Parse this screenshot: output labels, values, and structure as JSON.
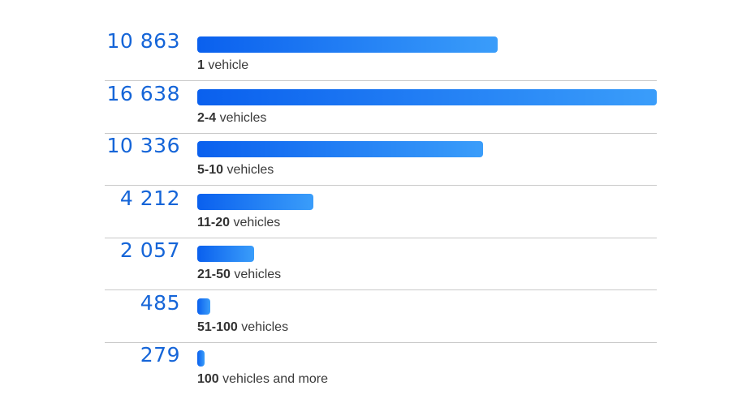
{
  "chart_data": {
    "type": "bar",
    "orientation": "horizontal",
    "title": "",
    "xlabel": "",
    "ylabel": "",
    "xlim": [
      0,
      16638
    ],
    "grid": false,
    "legend": "none",
    "bar_color_start": "#0a60ee",
    "bar_color_end": "#3a9dfa",
    "value_color": "#1565d8",
    "bars": [
      {
        "value": 10863,
        "value_label": "10 863",
        "category_bold": "1",
        "category_rest": " vehicle"
      },
      {
        "value": 16638,
        "value_label": "16 638",
        "category_bold": "2-4",
        "category_rest": " vehicles"
      },
      {
        "value": 10336,
        "value_label": "10 336",
        "category_bold": "5-10",
        "category_rest": " vehicles"
      },
      {
        "value": 4212,
        "value_label": "4 212",
        "category_bold": "11-20",
        "category_rest": " vehicles"
      },
      {
        "value": 2057,
        "value_label": "2 057",
        "category_bold": "21-50",
        "category_rest": " vehicles"
      },
      {
        "value": 485,
        "value_label": "485",
        "category_bold": "51-100",
        "category_rest": " vehicles"
      },
      {
        "value": 279,
        "value_label": "279",
        "category_bold": "100",
        "category_rest": " vehicles and more"
      }
    ]
  }
}
